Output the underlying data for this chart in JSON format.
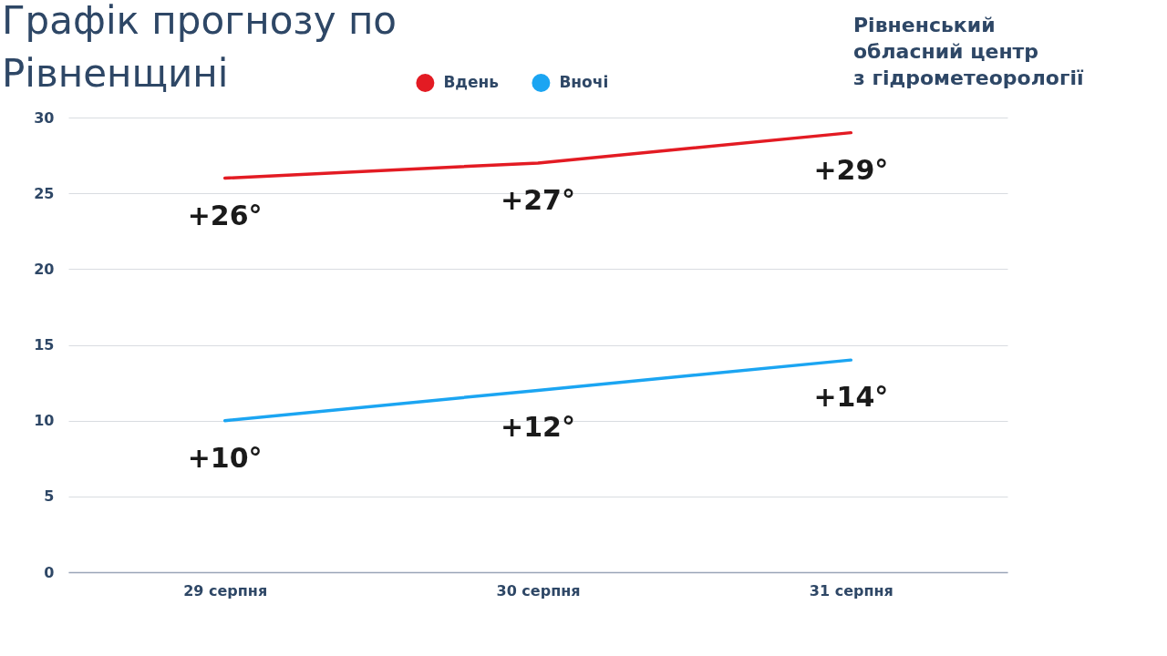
{
  "chart_data": {
    "type": "line",
    "title": "Графік прогнозу по\nРівненщині",
    "categories": [
      "29 серпня",
      "30 серпня",
      "31 серпня"
    ],
    "series": [
      {
        "name": "Вдень",
        "color": "#e31b23",
        "values": [
          26,
          27,
          29
        ],
        "value_labels": [
          "+26°",
          "+27°",
          "+29°"
        ]
      },
      {
        "name": "Вночі",
        "color": "#1ba5f2",
        "values": [
          10,
          12,
          14
        ],
        "value_labels": [
          "+10°",
          "+12°",
          "+14°"
        ]
      }
    ],
    "ylim": [
      0,
      30
    ],
    "yticks": [
      0,
      5,
      10,
      15,
      20,
      25,
      30
    ],
    "grid": "y",
    "legend": "top",
    "marker": "none",
    "line_style": "solid",
    "annotations": [
      "Рівненський\nобласний центр\nз гідрометеорології"
    ]
  }
}
